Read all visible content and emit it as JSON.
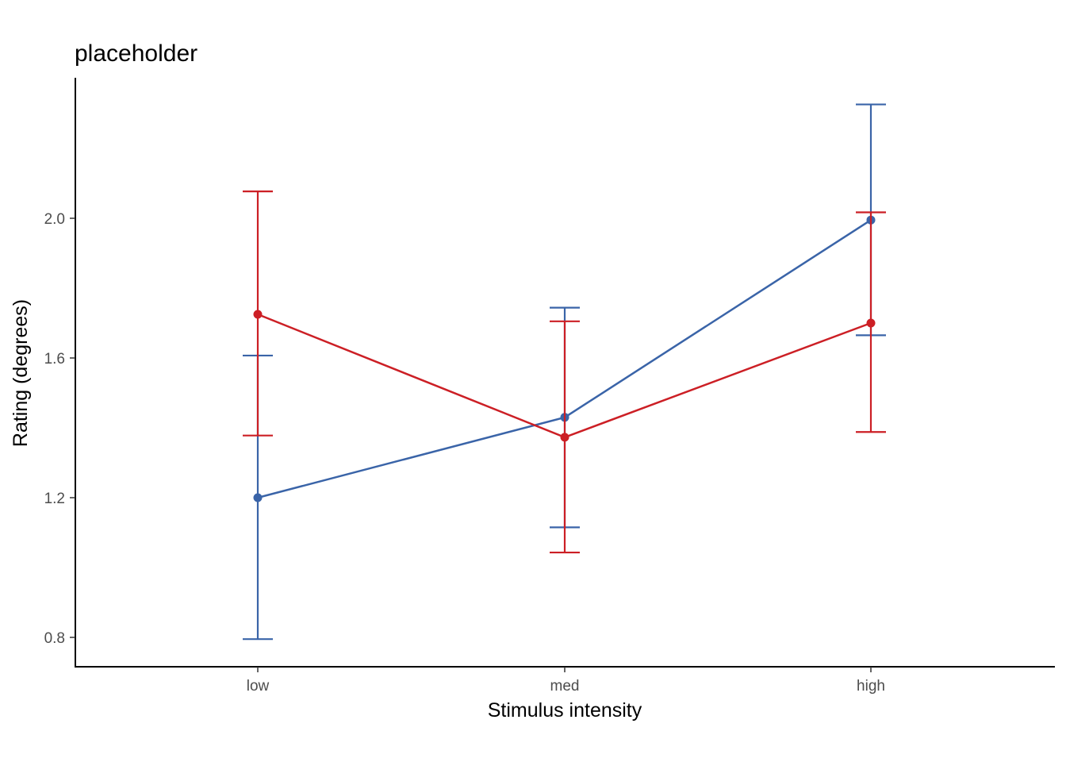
{
  "chart_data": {
    "type": "line",
    "title": "placeholder",
    "xlabel": "Stimulus intensity",
    "ylabel": "Rating (degrees)",
    "categories": [
      "low",
      "med",
      "high"
    ],
    "yticks": [
      0.8,
      1.2,
      1.6,
      2.0
    ],
    "ytick_labels": [
      "0.8",
      "1.2",
      "1.6",
      "2.0"
    ],
    "ylim": [
      0.72,
      2.39
    ],
    "grid": false,
    "legend": "none",
    "series": [
      {
        "color": "#3a64a8",
        "values": [
          1.2,
          1.43,
          1.995
        ],
        "lower": [
          0.795,
          1.115,
          1.665
        ],
        "upper": [
          1.607,
          1.744,
          2.326
        ]
      },
      {
        "color": "#cc1f25",
        "values": [
          1.725,
          1.373,
          1.7
        ],
        "lower": [
          1.378,
          1.043,
          1.388
        ],
        "upper": [
          2.077,
          1.705,
          2.017
        ]
      }
    ]
  }
}
